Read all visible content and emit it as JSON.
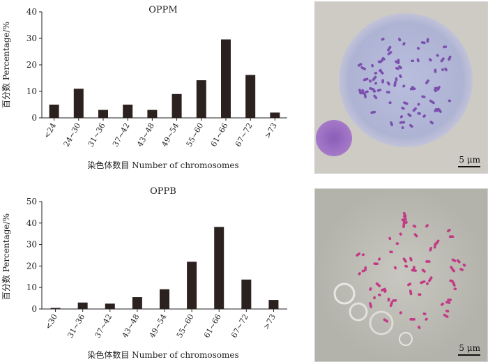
{
  "chart_data": [
    {
      "type": "bar",
      "title": "OPPM",
      "xlabel": "染色体数目 Number of chromosomes",
      "ylabel": "百分数 Percentage/%",
      "ylim": [
        0,
        40
      ],
      "yticks": [
        0,
        10,
        20,
        30,
        40
      ],
      "categories": [
        "<24",
        "24~30",
        "31~36",
        "37~42",
        "43~48",
        "49~54",
        "55~60",
        "61~66",
        "67~72",
        ">73"
      ],
      "values": [
        5,
        11,
        3,
        5,
        3,
        9,
        14.2,
        29.6,
        16.2,
        2
      ],
      "grid": false,
      "color": "#2b211f"
    },
    {
      "type": "bar",
      "title": "OPPB",
      "xlabel": "染色体数目 Number of chromosomes",
      "ylabel": "百分数 Percentage/%",
      "ylim": [
        0,
        50
      ],
      "yticks": [
        0,
        10,
        20,
        30,
        40,
        50
      ],
      "categories": [
        "<30",
        "31~36",
        "37~42",
        "43~48",
        "49~54",
        "55~60",
        "61~66",
        "67~72",
        ">73"
      ],
      "values": [
        0.5,
        3,
        2.5,
        5.5,
        9.2,
        22,
        38.2,
        13.7,
        4.2
      ],
      "grid": false,
      "color": "#2b211f"
    }
  ],
  "photos": [
    {
      "scale_label": "5 μm",
      "stain": "purple",
      "color": "#7b4fae"
    },
    {
      "scale_label": "5 μm",
      "stain": "magenta",
      "color": "#c23a86"
    }
  ]
}
